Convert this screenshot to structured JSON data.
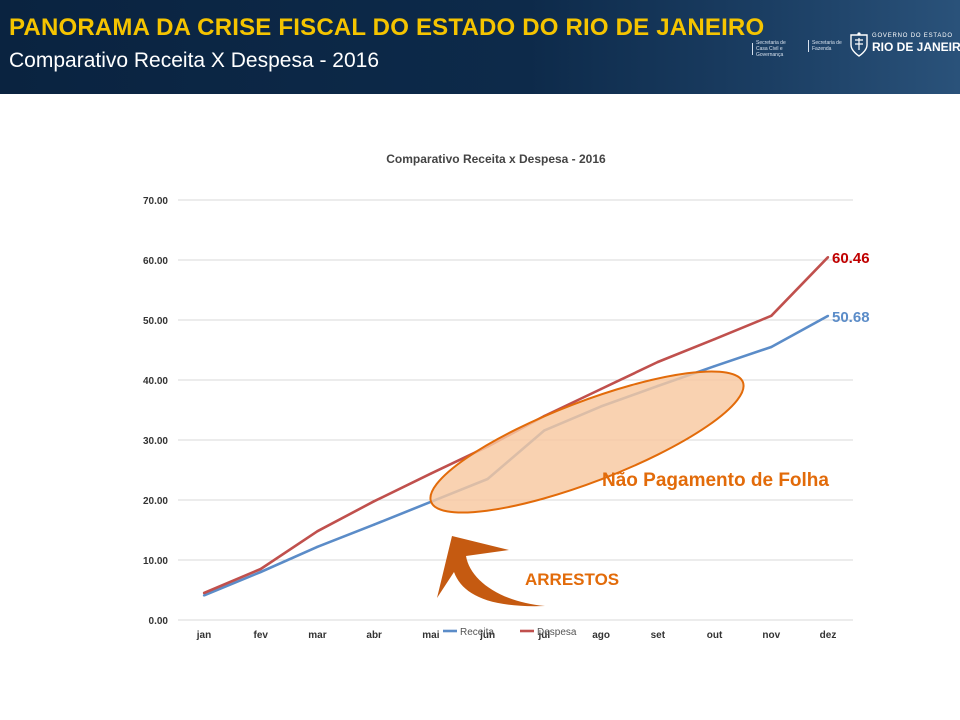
{
  "header": {
    "title": "PANORAMA DA CRISE FISCAL DO ESTADO DO RIO DE JANEIRO",
    "subtitle": "Comparativo Receita X Despesa - 2016",
    "logo_sec_1": "Secretaria de Casa Civil e Governança",
    "logo_sec_2": "Secretaria de Fazenda",
    "logo_gov": "GOVERNO DO ESTADO",
    "logo_rio": "RIO DE JANEIRO"
  },
  "colors": {
    "header_bg": "#0d2a4a",
    "header_title": "#f5c400",
    "receita": "#5b8cc8",
    "despesa": "#c0504d",
    "despesa_label": "#c00000",
    "annotation": "#e26b0a",
    "ellipse_fill": "#f8c8a0",
    "arrow": "#c55a11"
  },
  "chart_data": {
    "type": "line",
    "title": "Comparativo Receita x Despesa - 2016",
    "categories": [
      "jan",
      "fev",
      "mar",
      "abr",
      "mai",
      "jun",
      "jul",
      "ago",
      "set",
      "out",
      "nov",
      "dez"
    ],
    "series": [
      {
        "name": "Receita",
        "values": [
          4.1,
          8.0,
          12.2,
          15.9,
          19.7,
          23.5,
          31.6,
          35.6,
          39.0,
          42.3,
          45.5,
          50.68
        ]
      },
      {
        "name": "Despesa",
        "values": [
          4.5,
          8.5,
          14.8,
          19.8,
          24.4,
          28.9,
          34.0,
          38.5,
          43.0,
          46.8,
          50.7,
          60.46
        ]
      }
    ],
    "end_labels": [
      "50.68",
      "60.46"
    ],
    "ylim": [
      0,
      70
    ],
    "yticks": [
      "0.00",
      "10.00",
      "20.00",
      "30.00",
      "40.00",
      "50.00",
      "60.00",
      "70.00"
    ],
    "xlabel": "",
    "ylabel": "",
    "grid": true,
    "legend_position": "bottom",
    "annotations": {
      "ellipse_label": "Não Pagamento de Folha",
      "arrow_label": "ARRESTOS"
    }
  }
}
